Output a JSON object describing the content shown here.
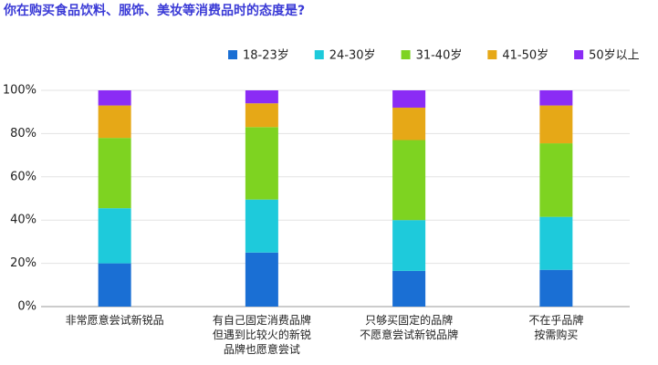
{
  "chart_data": {
    "type": "stacked_bar",
    "title": "你在购买食品饮料、服饰、美妆等消费品时的态度是?",
    "categories": [
      "非常愿意尝试新锐品",
      "有自己固定消费品牌\n但遇到比较火的新锐\n品牌也愿意尝试",
      "只够买固定的品牌\n不愿意尝试新锐品牌",
      "不在乎品牌\n按需购买"
    ],
    "series": [
      {
        "name": "18-23岁",
        "color": "#1a6fd4",
        "values": [
          20,
          25,
          16.5,
          17
        ]
      },
      {
        "name": "24-30岁",
        "color": "#1ecadb",
        "values": [
          25.5,
          24.5,
          23.5,
          24.5
        ]
      },
      {
        "name": "31-40岁",
        "color": "#7ed321",
        "values": [
          32.5,
          33.5,
          37,
          34
        ]
      },
      {
        "name": "41-50岁",
        "color": "#e6a817",
        "values": [
          15,
          11,
          15,
          17.5
        ]
      },
      {
        "name": "50岁以上",
        "color": "#8b2cf5",
        "values": [
          7,
          6,
          8,
          7
        ]
      }
    ],
    "ylim": [
      0,
      100
    ],
    "yticks": [
      {
        "value": 0,
        "label": "0%"
      },
      {
        "value": 20,
        "label": "20%"
      },
      {
        "value": 40,
        "label": "40%"
      },
      {
        "value": 60,
        "label": "60%"
      },
      {
        "value": 80,
        "label": "80%"
      },
      {
        "value": 100,
        "label": "100%"
      }
    ],
    "grid": true,
    "legend": "top-right"
  }
}
